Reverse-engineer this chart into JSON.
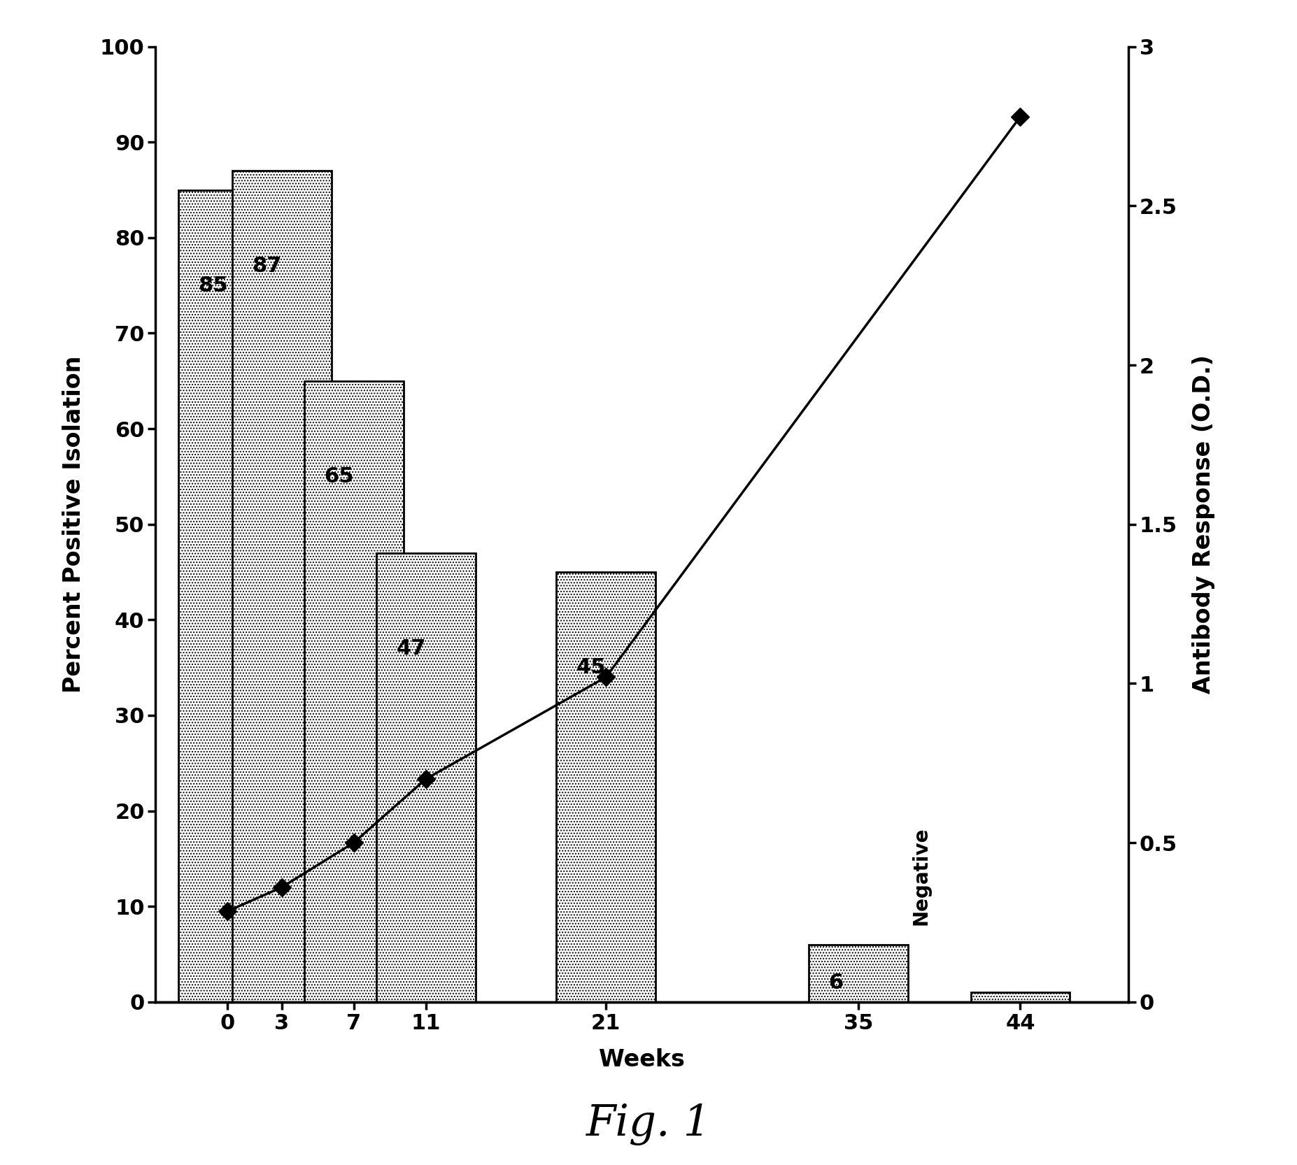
{
  "weeks": [
    0,
    3,
    7,
    11,
    21,
    35,
    44
  ],
  "bar_values": [
    85,
    87,
    65,
    47,
    45,
    6,
    1
  ],
  "bar_labels": [
    "85",
    "87",
    "65",
    "47",
    "45",
    "6",
    ""
  ],
  "line_weeks": [
    0,
    3,
    7,
    11,
    21,
    44
  ],
  "line_values": [
    0.285,
    0.36,
    0.5,
    0.7,
    1.02,
    2.78
  ],
  "ylim_left": [
    0,
    100
  ],
  "ylim_right": [
    0,
    3
  ],
  "yticks_left": [
    0,
    10,
    20,
    30,
    40,
    50,
    60,
    70,
    80,
    90,
    100
  ],
  "yticks_right": [
    0,
    0.5,
    1.0,
    1.5,
    2.0,
    2.5,
    3.0
  ],
  "ytick_right_labels": [
    "0",
    "0.5",
    "1",
    "1.5",
    "2",
    "2.5",
    "3"
  ],
  "ylabel_left": "Percent Positive Isolation",
  "ylabel_right": "Antibody Response (O.D.)",
  "xlabel": "Weeks",
  "negative_text": "Negative",
  "fig_caption": "Fig. 1",
  "background_color": "#ffffff",
  "bar_edgecolor": "#000000",
  "line_color": "#000000",
  "bar_linewidth": 2.0,
  "xlim": [
    -4,
    50
  ],
  "bar_width": 5.5,
  "label_fontsize": 22,
  "tick_fontsize": 22,
  "axis_label_fontsize": 24
}
